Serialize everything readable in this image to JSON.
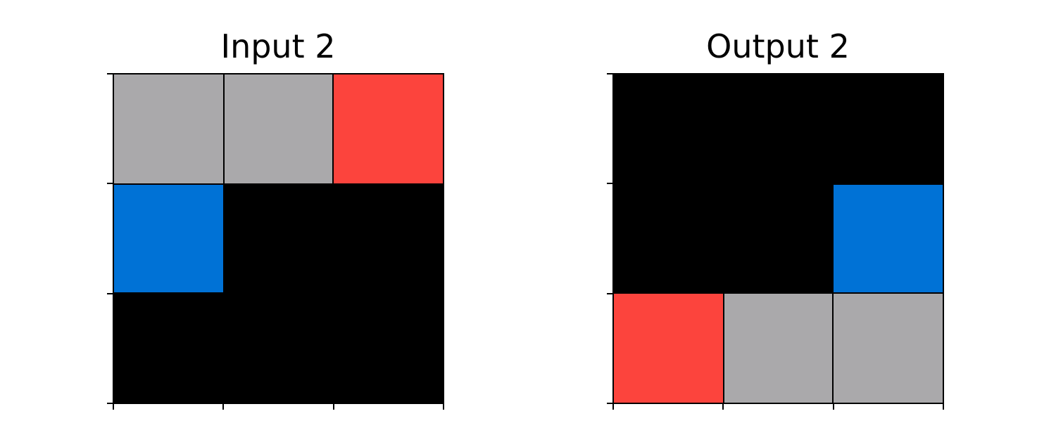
{
  "panels": [
    {
      "title": "Input 2",
      "grid": [
        [
          "gray",
          "gray",
          "red"
        ],
        [
          "blue",
          "black",
          "black"
        ],
        [
          "black",
          "black",
          "black"
        ]
      ]
    },
    {
      "title": "Output 2",
      "grid": [
        [
          "black",
          "black",
          "black"
        ],
        [
          "black",
          "black",
          "blue"
        ],
        [
          "red",
          "gray",
          "gray"
        ]
      ]
    }
  ],
  "palette": {
    "black": "#000000",
    "gray": "#aaa9ab",
    "red": "#fc443d",
    "blue": "#0072d6"
  }
}
